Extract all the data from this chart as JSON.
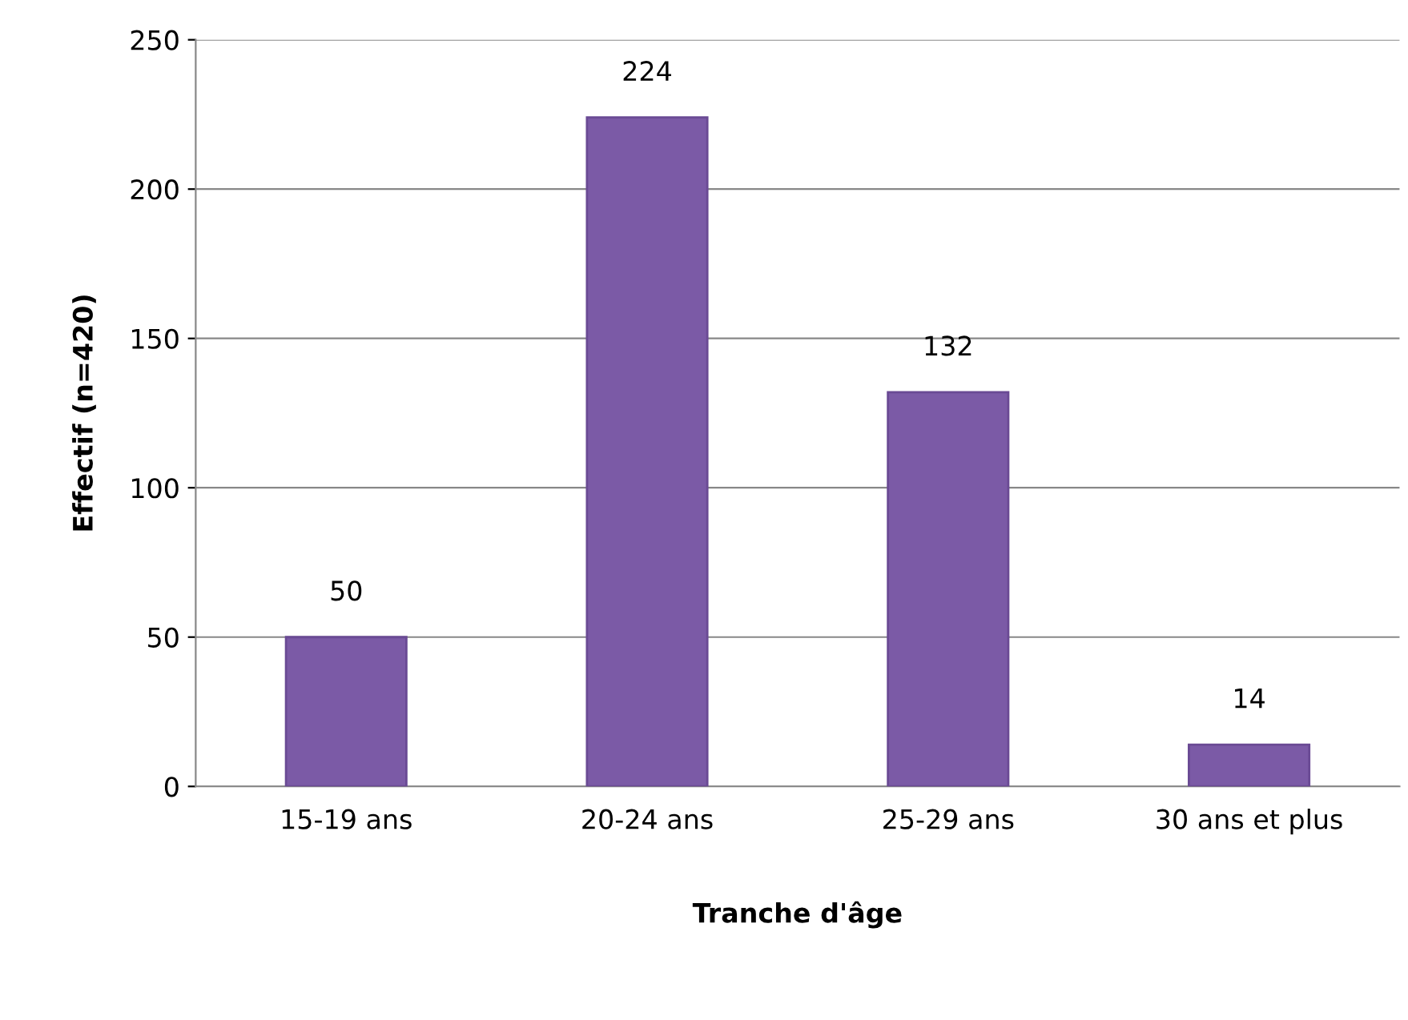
{
  "chart_data": {
    "type": "bar",
    "xlabel": "Tranche d'âge",
    "ylabel": "Effectif (n=420)",
    "categories": [
      "15-19 ans",
      "20-24 ans",
      "25-29 ans",
      "30 ans et plus"
    ],
    "values": [
      50,
      224,
      132,
      14
    ],
    "color": "#7b5aa6",
    "ylim": [
      0,
      250
    ],
    "yticks": [
      0,
      50,
      100,
      150,
      200,
      250
    ],
    "grid": "y",
    "data_labels": true,
    "legend": false
  }
}
